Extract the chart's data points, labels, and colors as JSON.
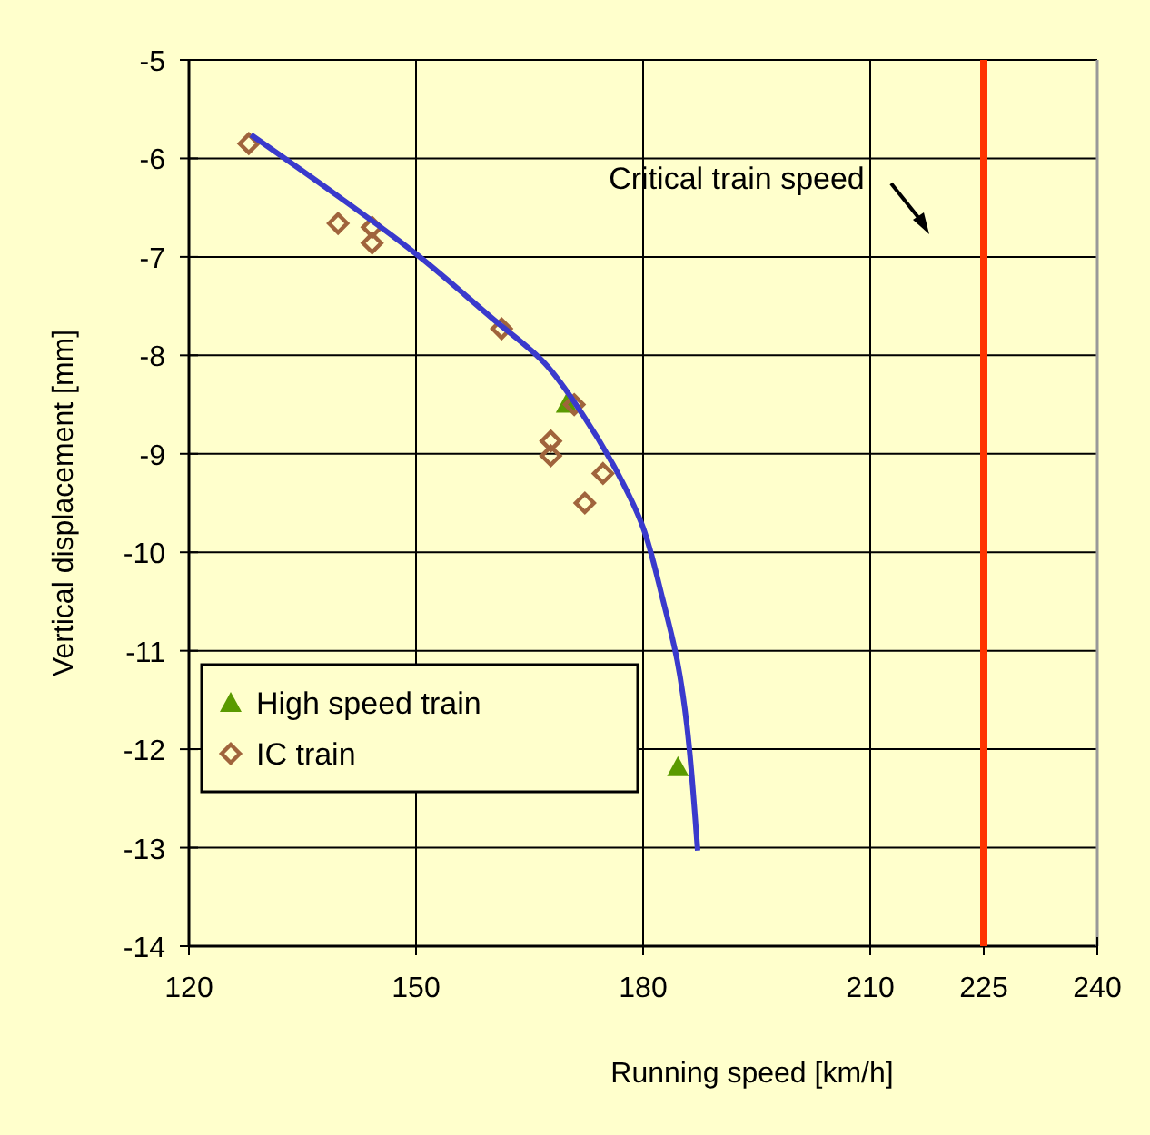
{
  "chart_data": {
    "type": "scatter",
    "xlabel": "Running speed [km/h]",
    "ylabel": "Vertical displacement [mm]",
    "xlim": [
      120,
      240
    ],
    "xticks": [
      120,
      150,
      180,
      210,
      225,
      240
    ],
    "ylim": [
      -14,
      -5
    ],
    "yticks": [
      -14,
      -13,
      -12,
      -11,
      -10,
      -9,
      -8,
      -7,
      -6,
      -5
    ],
    "grid": true,
    "legend": "bottom left",
    "series": [
      {
        "name": "High speed train",
        "color": "#5a9a00",
        "marker": "triangle",
        "x": [
          169.9,
          184.6
        ],
        "values": [
          -8.49,
          -12.18
        ]
      },
      {
        "name": "IC train",
        "color": "#a0643c",
        "marker": "diamond",
        "x": [
          127.9,
          139.7,
          144.2,
          144.2,
          161.3,
          170.9,
          167.8,
          167.8,
          174.7,
          172.3
        ],
        "values": [
          -5.85,
          -6.66,
          -6.7,
          -6.86,
          -7.73,
          -8.5,
          -8.87,
          -9.02,
          -9.2,
          -9.5
        ]
      },
      {
        "type": "line",
        "color": "#3a3acc",
        "marker": "none",
        "x": [
          128.2,
          140,
          150,
          160,
          167,
          172,
          176.6,
          180,
          182.6,
          184.5,
          185.8,
          187.2
        ],
        "values": [
          -5.76,
          -6.4,
          -6.97,
          -7.62,
          -8.08,
          -8.6,
          -9.19,
          -9.75,
          -10.48,
          -11.1,
          -11.77,
          -13.03
        ]
      }
    ],
    "ref_lines": [
      {
        "axis": "x",
        "value": 225,
        "color": "#ff3300"
      }
    ],
    "annotations": [
      "Critical train speed"
    ]
  }
}
